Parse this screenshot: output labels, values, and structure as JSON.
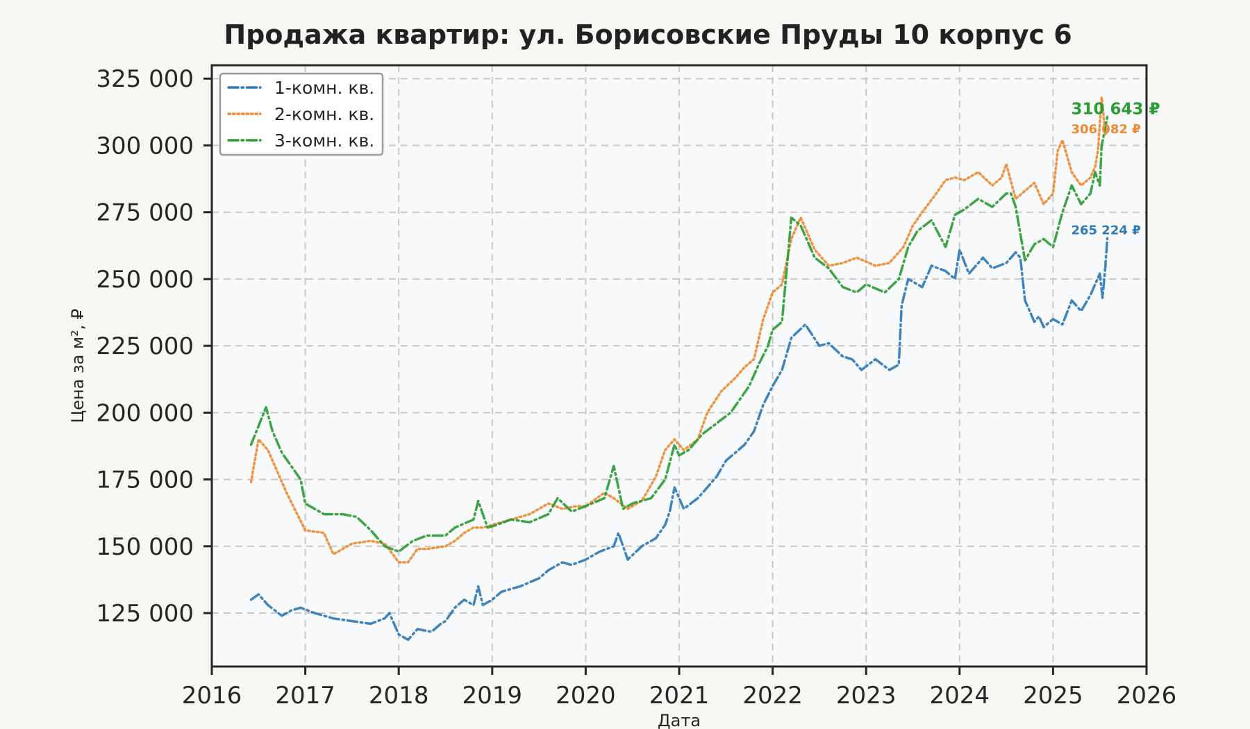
{
  "chart_data": {
    "type": "line",
    "title": "Продажа квартир: ул. Борисовские Пруды 10 корпус 6",
    "xlabel": "Дата",
    "ylabel": "Цена за м², ₽",
    "xlim": [
      2016,
      2026
    ],
    "ylim": [
      105000,
      330000
    ],
    "x_ticks": [
      2016,
      2017,
      2018,
      2019,
      2020,
      2021,
      2022,
      2023,
      2024,
      2025,
      2026
    ],
    "x_tick_labels": [
      "2016",
      "2017",
      "2018",
      "2019",
      "2020",
      "2021",
      "2022",
      "2023",
      "2024",
      "2025",
      "2026"
    ],
    "y_ticks": [
      125000,
      150000,
      175000,
      200000,
      225000,
      250000,
      275000,
      300000,
      325000
    ],
    "y_tick_labels": [
      "125 000",
      "150 000",
      "175 000",
      "200 000",
      "225 000",
      "250 000",
      "275 000",
      "300 000",
      "325 000"
    ],
    "grid": true,
    "legend_position": "top-left",
    "series": [
      {
        "name": "1-комн. кв.",
        "color": "#2f7bb5",
        "linestyle": "dash-dot",
        "end_label": "265 224 ₽",
        "x": [
          2016.42,
          2016.5,
          2016.6,
          2016.75,
          2016.85,
          2016.95,
          2017.1,
          2017.3,
          2017.5,
          2017.7,
          2017.85,
          2017.9,
          2018.0,
          2018.1,
          2018.2,
          2018.35,
          2018.45,
          2018.5,
          2018.6,
          2018.7,
          2018.8,
          2018.85,
          2018.9,
          2019.0,
          2019.1,
          2019.3,
          2019.5,
          2019.6,
          2019.75,
          2019.85,
          2020.0,
          2020.15,
          2020.3,
          2020.35,
          2020.45,
          2020.6,
          2020.75,
          2020.85,
          2020.9,
          2020.95,
          2021.05,
          2021.2,
          2021.3,
          2021.4,
          2021.5,
          2021.6,
          2021.7,
          2021.8,
          2021.9,
          2022.0,
          2022.1,
          2022.2,
          2022.35,
          2022.5,
          2022.6,
          2022.75,
          2022.85,
          2022.95,
          2023.1,
          2023.25,
          2023.35,
          2023.38,
          2023.45,
          2023.6,
          2023.7,
          2023.85,
          2023.95,
          2024.0,
          2024.1,
          2024.25,
          2024.35,
          2024.5,
          2024.6,
          2024.65,
          2024.7,
          2024.8,
          2024.85,
          2024.9,
          2025.0,
          2025.1,
          2025.2,
          2025.3,
          2025.4,
          2025.5,
          2025.53,
          2025.56,
          2025.58
        ],
        "y": [
          130000,
          132000,
          128000,
          124000,
          126000,
          127000,
          125000,
          123000,
          122000,
          121000,
          123000,
          125000,
          117000,
          115000,
          119000,
          118000,
          121000,
          122000,
          127000,
          130000,
          128000,
          135000,
          128000,
          130000,
          133000,
          135000,
          138000,
          141000,
          144000,
          143000,
          145000,
          148000,
          150000,
          155000,
          145000,
          150000,
          153000,
          158000,
          163000,
          172000,
          164000,
          168000,
          172000,
          176000,
          182000,
          185000,
          188000,
          193000,
          203000,
          210000,
          216000,
          228000,
          233000,
          225000,
          226000,
          221000,
          220000,
          216000,
          220000,
          216000,
          218000,
          240000,
          250000,
          247000,
          255000,
          253000,
          250000,
          261000,
          252000,
          258000,
          254000,
          256000,
          260000,
          258000,
          242000,
          234000,
          236000,
          232000,
          235000,
          233000,
          242000,
          238000,
          244000,
          252000,
          243000,
          255000,
          265224
        ]
      },
      {
        "name": "2-комн. кв.",
        "color": "#ee8a33",
        "linestyle": "dotted",
        "end_label": "306 082 ₽",
        "x": [
          2016.42,
          2016.5,
          2016.6,
          2016.7,
          2016.8,
          2016.9,
          2017.0,
          2017.2,
          2017.3,
          2017.5,
          2017.7,
          2017.85,
          2018.0,
          2018.1,
          2018.2,
          2018.3,
          2018.5,
          2018.6,
          2018.7,
          2018.8,
          2018.9,
          2019.0,
          2019.2,
          2019.4,
          2019.6,
          2019.75,
          2019.9,
          2020.0,
          2020.2,
          2020.3,
          2020.45,
          2020.6,
          2020.75,
          2020.85,
          2020.95,
          2021.05,
          2021.2,
          2021.3,
          2021.45,
          2021.6,
          2021.7,
          2021.8,
          2021.9,
          2022.0,
          2022.1,
          2022.2,
          2022.3,
          2022.45,
          2022.6,
          2022.75,
          2022.9,
          2023.1,
          2023.25,
          2023.4,
          2023.5,
          2023.6,
          2023.75,
          2023.85,
          2023.95,
          2024.05,
          2024.2,
          2024.35,
          2024.45,
          2024.5,
          2024.6,
          2024.7,
          2024.8,
          2024.9,
          2025.0,
          2025.05,
          2025.1,
          2025.2,
          2025.3,
          2025.4,
          2025.45,
          2025.48,
          2025.52,
          2025.56,
          2025.58
        ],
        "y": [
          174000,
          190000,
          186000,
          178000,
          170000,
          163000,
          156000,
          155000,
          147000,
          151000,
          152000,
          151000,
          144000,
          144000,
          149000,
          149000,
          150000,
          152000,
          155000,
          157000,
          157000,
          158000,
          160000,
          162000,
          166000,
          164000,
          165000,
          165000,
          170000,
          168000,
          164000,
          167000,
          176000,
          186000,
          190000,
          186000,
          190000,
          200000,
          208000,
          213000,
          217000,
          220000,
          235000,
          245000,
          248000,
          265000,
          273000,
          261000,
          255000,
          256000,
          258000,
          255000,
          256000,
          262000,
          270000,
          275000,
          282000,
          287000,
          288000,
          287000,
          290000,
          285000,
          288000,
          293000,
          280000,
          283000,
          286000,
          278000,
          282000,
          298000,
          302000,
          290000,
          285000,
          288000,
          292000,
          298000,
          318000,
          304000,
          306082
        ]
      },
      {
        "name": "3-комн. кв.",
        "color": "#2c9c35",
        "linestyle": "dash-dot",
        "end_label": "310 643 ₽",
        "x": [
          2016.42,
          2016.5,
          2016.58,
          2016.65,
          2016.75,
          2016.85,
          2016.95,
          2017.0,
          2017.2,
          2017.4,
          2017.55,
          2017.7,
          2017.85,
          2018.0,
          2018.15,
          2018.3,
          2018.5,
          2018.6,
          2018.8,
          2018.85,
          2018.95,
          2019.05,
          2019.2,
          2019.4,
          2019.6,
          2019.7,
          2019.85,
          2020.0,
          2020.2,
          2020.3,
          2020.4,
          2020.5,
          2020.7,
          2020.85,
          2020.95,
          2021.0,
          2021.1,
          2021.25,
          2021.4,
          2021.55,
          2021.65,
          2021.75,
          2021.85,
          2021.95,
          2022.0,
          2022.1,
          2022.2,
          2022.3,
          2022.45,
          2022.6,
          2022.75,
          2022.9,
          2023.0,
          2023.2,
          2023.35,
          2023.45,
          2023.55,
          2023.7,
          2023.85,
          2023.95,
          2024.05,
          2024.2,
          2024.35,
          2024.5,
          2024.55,
          2024.6,
          2024.7,
          2024.8,
          2024.9,
          2025.0,
          2025.1,
          2025.2,
          2025.3,
          2025.4,
          2025.45,
          2025.5,
          2025.52,
          2025.55,
          2025.58
        ],
        "y": [
          188000,
          195000,
          202000,
          193000,
          185000,
          180000,
          175000,
          166000,
          162000,
          162000,
          161000,
          156000,
          150000,
          148000,
          152000,
          154000,
          154000,
          157000,
          160000,
          167000,
          157000,
          158000,
          160000,
          159000,
          162000,
          168000,
          163000,
          165000,
          168000,
          180000,
          164000,
          166000,
          168000,
          175000,
          188000,
          184000,
          186000,
          192000,
          196000,
          200000,
          205000,
          210000,
          218000,
          225000,
          231000,
          234000,
          273000,
          270000,
          258000,
          254000,
          247000,
          245000,
          248000,
          245000,
          250000,
          262000,
          268000,
          272000,
          262000,
          274000,
          276000,
          280000,
          277000,
          282000,
          282000,
          277000,
          257000,
          263000,
          265000,
          262000,
          275000,
          285000,
          278000,
          282000,
          290000,
          285000,
          300000,
          305000,
          310643
        ]
      }
    ]
  }
}
